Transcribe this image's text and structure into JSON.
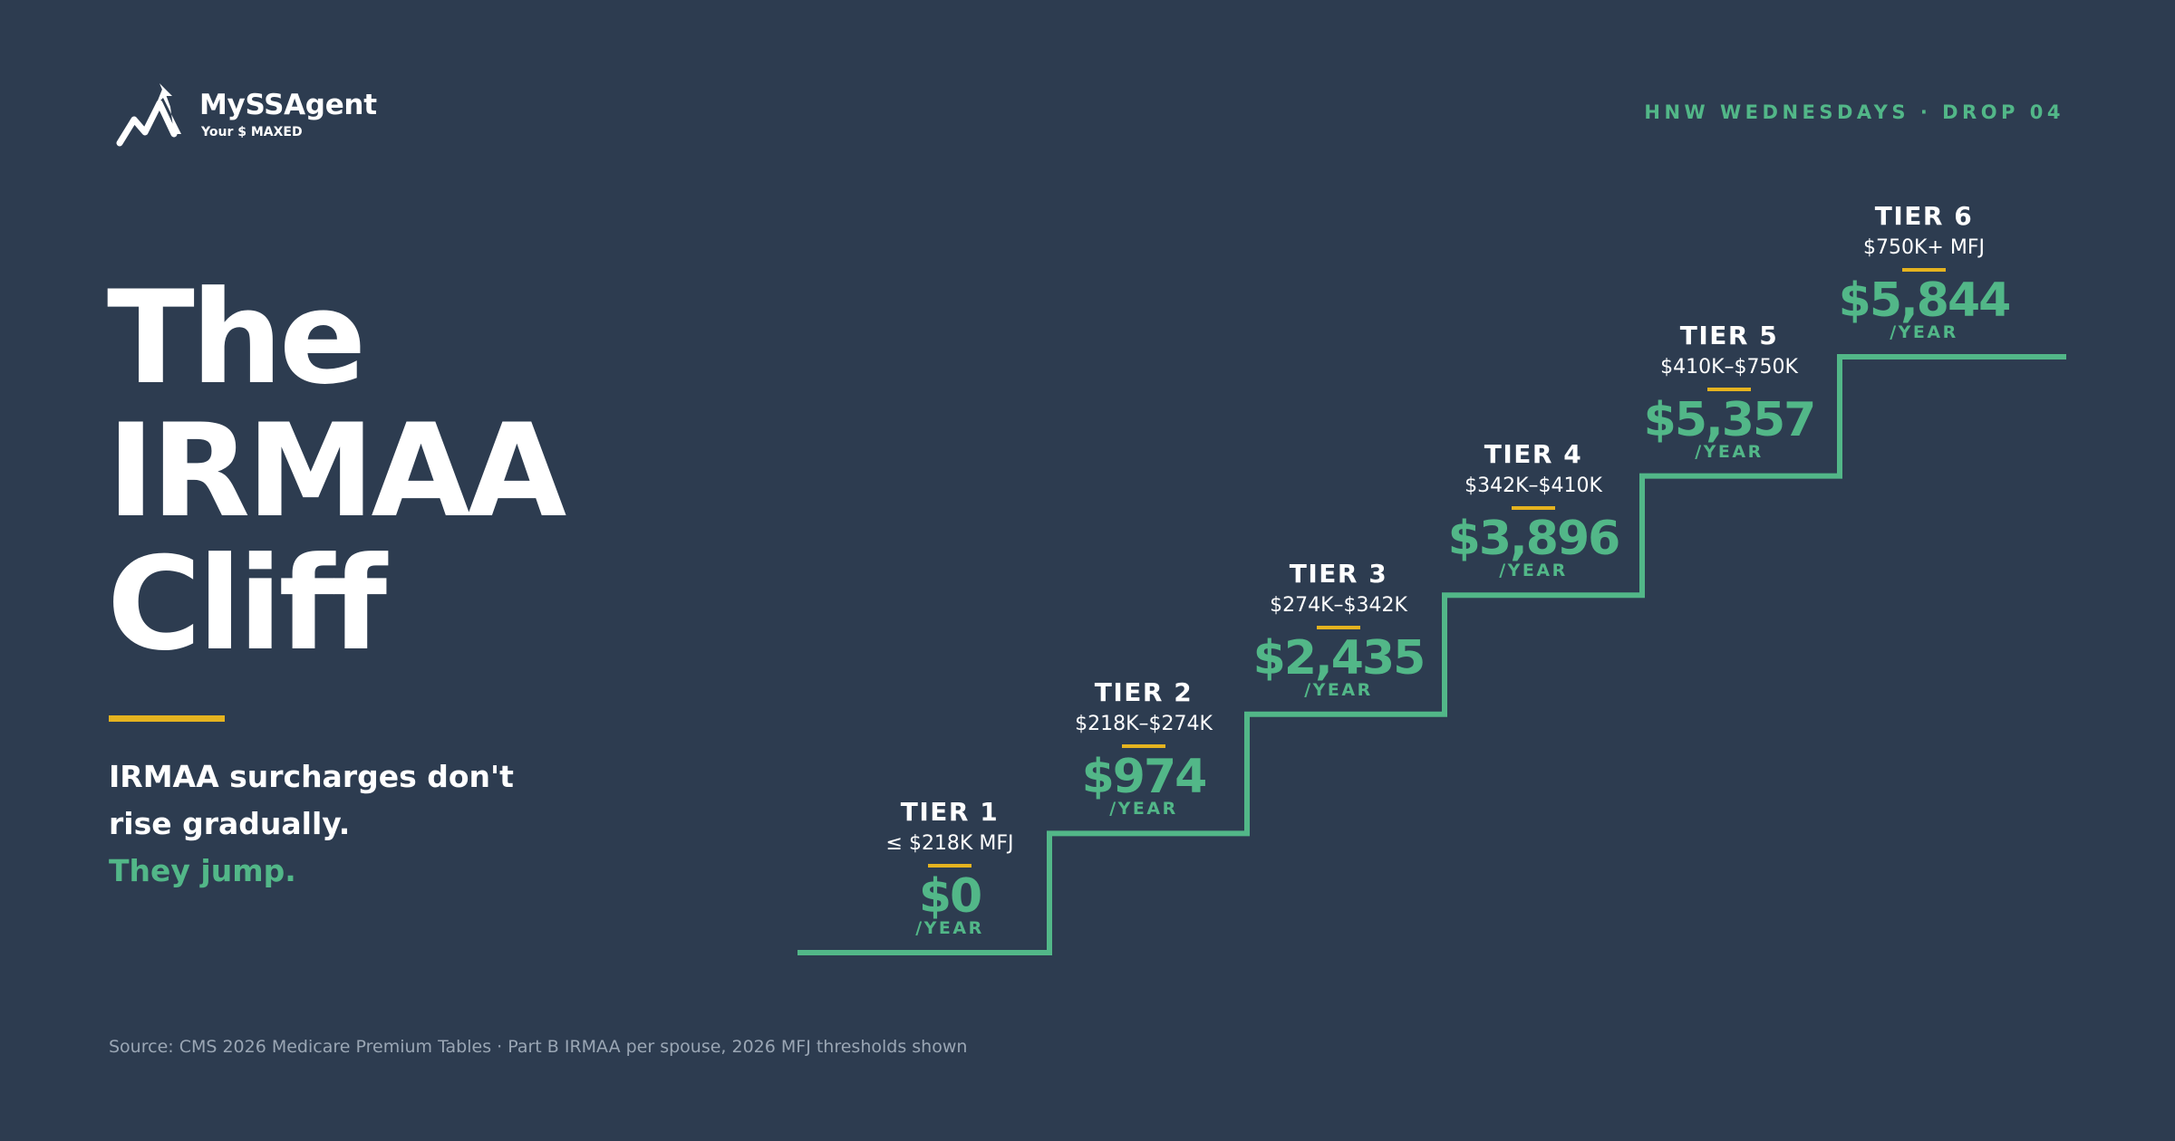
{
  "brand": {
    "name": "MySSAgent",
    "tagline": "Your $ MAXED",
    "logo_icon": "rising-arrow-mountain-icon"
  },
  "episode_label": "HNW WEDNESDAYS · DROP 04",
  "headline": {
    "line1": "The",
    "line2": "IRMAA",
    "line3": "Cliff"
  },
  "subhead": {
    "line1": "IRMAA surcharges don't",
    "line2": "rise gradually.",
    "line3": "They jump."
  },
  "source_note": "Source: CMS 2026 Medicare Premium Tables · Part B IRMAA per spouse, 2026 MFJ thresholds shown",
  "colors": {
    "background": "#2d3c50",
    "accent_green": "#52b788",
    "accent_gold": "#e5b31f",
    "text": "#ffffff",
    "muted": "#9aa6b4"
  },
  "chart_data": {
    "type": "line",
    "step": true,
    "title": "",
    "xlabel": "",
    "ylabel": "",
    "categories": [
      "TIER 1",
      "TIER 2",
      "TIER 3",
      "TIER 4",
      "TIER 5",
      "TIER 6"
    ],
    "ranges": [
      "≤ $218K MFJ",
      "$218K–$274K",
      "$274K–$342K",
      "$342K–$410K",
      "$410K–$750K",
      "$750K+ MFJ"
    ],
    "values": [
      0,
      974,
      2435,
      3896,
      5357,
      5844
    ],
    "value_labels": [
      "$0",
      "$974",
      "$2,435",
      "$3,896",
      "$5,357",
      "$5,844"
    ],
    "unit": "/YEAR",
    "line_color": "#52b788",
    "grid": false
  }
}
